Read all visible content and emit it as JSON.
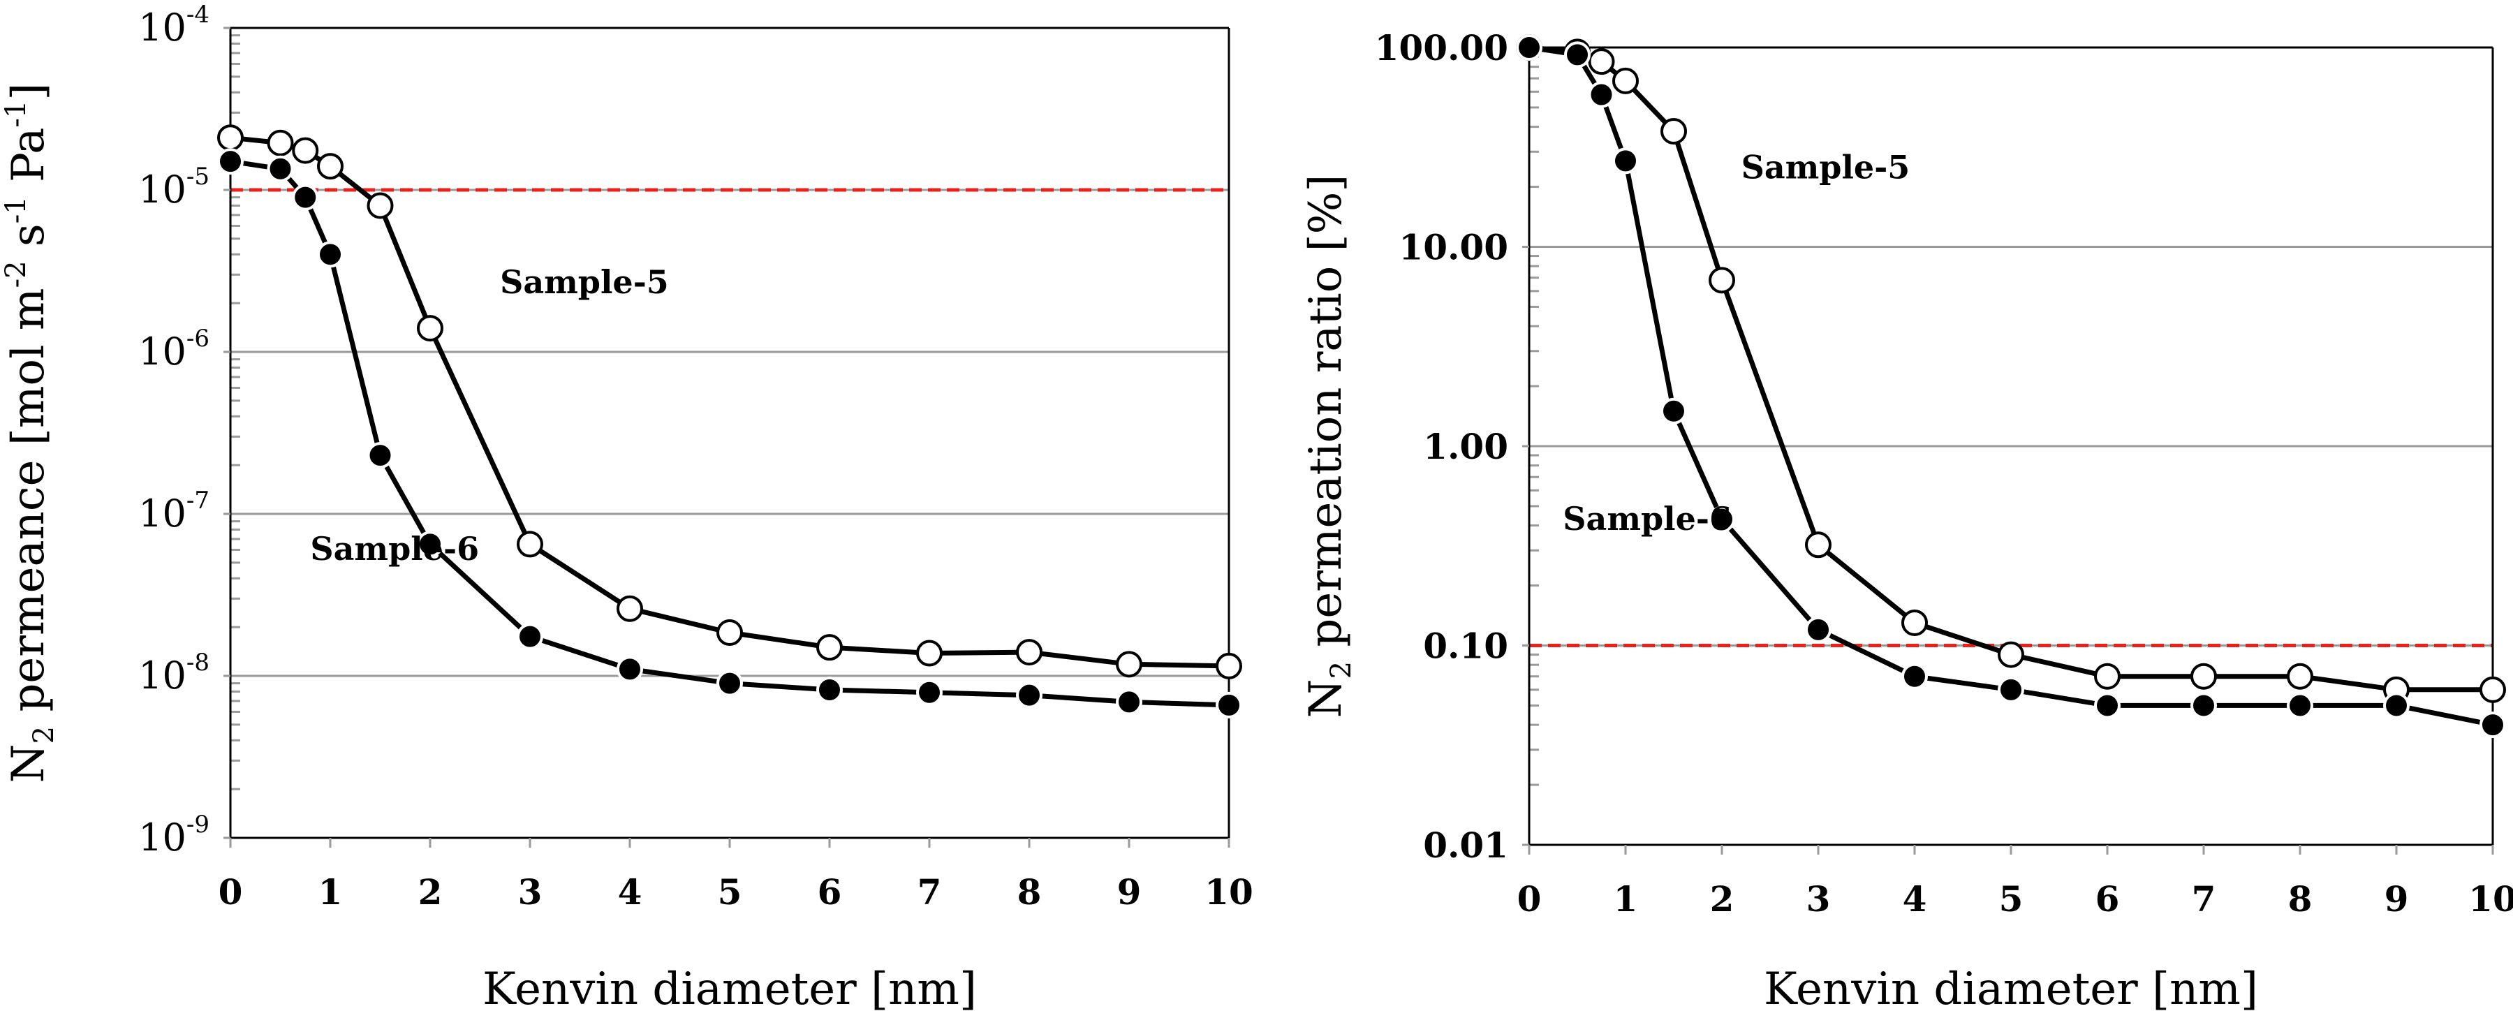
{
  "chart_data": [
    {
      "type": "line",
      "xlabel": "Kenvin diameter [nm]",
      "ylabel": {
        "prefix": "N",
        "prefix_sub": "2",
        "text": " permeance [mol m",
        "exp1": "-2",
        "mid": " s",
        "exp2": "-1",
        "mid2": " Pa",
        "exp3": "-1",
        "suffix": "]"
      },
      "yscale": "log",
      "ylim": [
        1e-09,
        0.0001
      ],
      "xlim": [
        0,
        10
      ],
      "x_ticks": [
        "0",
        "1",
        "2",
        "3",
        "4",
        "5",
        "6",
        "7",
        "8",
        "9",
        "10"
      ],
      "y_ticks": [
        {
          "value": 1e-09,
          "base": "10",
          "exp": "-9"
        },
        {
          "value": 1e-08,
          "base": "10",
          "exp": "-8"
        },
        {
          "value": 1e-07,
          "base": "10",
          "exp": "-7"
        },
        {
          "value": 1e-06,
          "base": "10",
          "exp": "-6"
        },
        {
          "value": 1e-05,
          "base": "10",
          "exp": "-5"
        },
        {
          "value": 0.0001,
          "base": "10",
          "exp": "-4"
        }
      ],
      "reference_line": {
        "y": 1e-05,
        "color": "#e8221b",
        "style": "dashed"
      },
      "series": [
        {
          "name": "Sample-5",
          "marker": "open",
          "label_at": [
            2.7,
            2.3e-06
          ],
          "x": [
            0,
            0.5,
            0.75,
            1.0,
            1.5,
            2.0,
            3.0,
            4.0,
            5.0,
            6.0,
            7.0,
            8.0,
            9.0,
            10.0
          ],
          "y": [
            2.1e-05,
            1.95e-05,
            1.75e-05,
            1.4e-05,
            8e-06,
            1.4e-06,
            6.5e-08,
            2.6e-08,
            1.85e-08,
            1.5e-08,
            1.38e-08,
            1.4e-08,
            1.18e-08,
            1.15e-08
          ]
        },
        {
          "name": "Sample-6",
          "marker": "filled",
          "label_at": [
            0.8,
            5.2e-08
          ],
          "x": [
            0,
            0.5,
            0.75,
            1.0,
            1.5,
            2.0,
            3.0,
            4.0,
            5.0,
            6.0,
            7.0,
            8.0,
            9.0,
            10.0
          ],
          "y": [
            1.5e-05,
            1.35e-05,
            9e-06,
            4e-06,
            2.3e-07,
            6.5e-08,
            1.75e-08,
            1.1e-08,
            9e-09,
            8.2e-09,
            7.9e-09,
            7.6e-09,
            6.9e-09,
            6.6e-09
          ]
        }
      ]
    },
    {
      "type": "line",
      "xlabel": "Kenvin diameter [nm]",
      "ylabel": {
        "prefix": "N",
        "prefix_sub": "2",
        "text": " permeation ratio [%]"
      },
      "yscale": "log",
      "ylim": [
        0.01,
        100
      ],
      "xlim": [
        0,
        10
      ],
      "x_ticks": [
        "0",
        "1",
        "2",
        "3",
        "4",
        "5",
        "6",
        "7",
        "8",
        "9",
        "10"
      ],
      "y_ticks": [
        {
          "value": 0.01,
          "label": "0.01"
        },
        {
          "value": 0.1,
          "label": "0.10"
        },
        {
          "value": 1,
          "label": "1.00"
        },
        {
          "value": 10,
          "label": "10.00"
        },
        {
          "value": 100,
          "label": "100.00"
        }
      ],
      "reference_line": {
        "y": 0.1,
        "color": "#e8221b",
        "style": "dashed"
      },
      "series": [
        {
          "name": "Sample-5",
          "marker": "open",
          "label_at": [
            2.2,
            22
          ],
          "x": [
            0,
            0.5,
            0.75,
            1.0,
            1.5,
            2.0,
            3.0,
            4.0,
            5.0,
            6.0,
            7.0,
            8.0,
            9.0,
            10.0
          ],
          "y": [
            100,
            95,
            85,
            68,
            38,
            6.8,
            0.32,
            0.13,
            0.09,
            0.07,
            0.07,
            0.07,
            0.06,
            0.06
          ]
        },
        {
          "name": "Sample-6",
          "marker": "filled",
          "label_at": [
            0.35,
            0.38
          ],
          "x": [
            0,
            0.5,
            0.75,
            1.0,
            1.5,
            2.0,
            3.0,
            4.0,
            5.0,
            6.0,
            7.0,
            8.0,
            9.0,
            10.0
          ],
          "y": [
            100,
            92,
            58,
            27,
            1.5,
            0.43,
            0.12,
            0.07,
            0.06,
            0.05,
            0.05,
            0.05,
            0.05,
            0.04
          ]
        }
      ]
    }
  ]
}
